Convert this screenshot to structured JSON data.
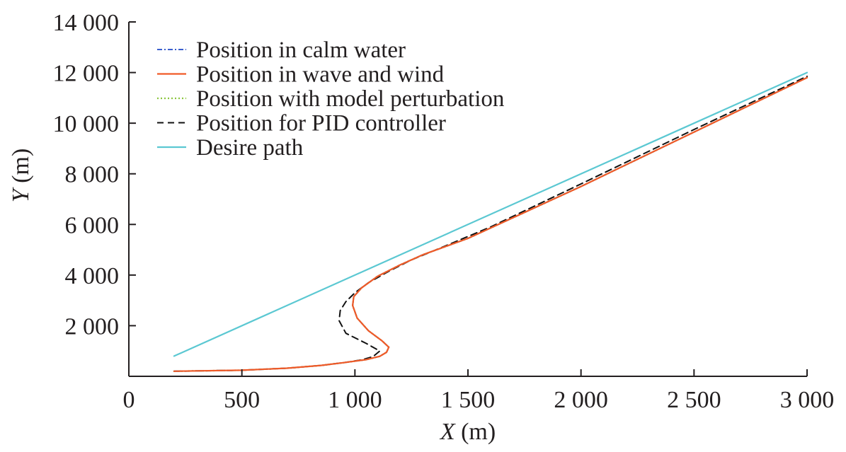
{
  "chart_data": {
    "type": "line",
    "xlabel": {
      "var": "X",
      "unit": " (m)"
    },
    "ylabel": {
      "var": "Y",
      "unit": " (m)"
    },
    "xlim": [
      0,
      3000
    ],
    "ylim": [
      0,
      14000
    ],
    "x_ticks": [
      0,
      500,
      1000,
      1500,
      2000,
      2500,
      3000
    ],
    "x_tick_labels": [
      "0",
      "500",
      "1 000",
      "1 500",
      "2 000",
      "2 500",
      "3 000"
    ],
    "y_ticks": [
      2000,
      4000,
      6000,
      8000,
      10000,
      12000,
      14000
    ],
    "y_tick_labels": [
      "2 000",
      "4 000",
      "6 000",
      "8 000",
      "10 000",
      "12 000",
      "14 000"
    ],
    "grid": false,
    "legend_position": "top-left",
    "series": [
      {
        "name": "Position in calm water",
        "color": "#3a5fcd",
        "dash": "dashdot",
        "x": [
          200,
          500,
          700,
          850,
          950,
          1050,
          1110,
          1140,
          1150,
          1120,
          1060,
          1010,
          990,
          995,
          1030,
          1100,
          1200,
          1300,
          1500,
          2000,
          2500,
          3000
        ],
        "y": [
          200,
          240,
          320,
          430,
          540,
          660,
          790,
          950,
          1150,
          1400,
          1800,
          2300,
          2800,
          3150,
          3500,
          3950,
          4400,
          4800,
          5450,
          7500,
          9650,
          11800
        ]
      },
      {
        "name": "Position in wave and wind",
        "color": "#f05a28",
        "dash": "solid",
        "x": [
          200,
          500,
          700,
          850,
          950,
          1050,
          1110,
          1140,
          1150,
          1120,
          1060,
          1010,
          990,
          995,
          1030,
          1100,
          1200,
          1300,
          1500,
          2000,
          2500,
          3000
        ],
        "y": [
          200,
          240,
          320,
          430,
          540,
          660,
          790,
          950,
          1150,
          1400,
          1800,
          2300,
          2800,
          3150,
          3500,
          3950,
          4400,
          4800,
          5450,
          7500,
          9650,
          11800
        ]
      },
      {
        "name": "Position with model perturbation",
        "color": "#8cc63f",
        "dash": "dotted",
        "x": [
          200,
          500,
          700,
          850,
          950,
          1050,
          1110,
          1140,
          1150,
          1120,
          1060,
          1010,
          990,
          995,
          1030,
          1100,
          1200,
          1300,
          1500,
          2000,
          2500,
          3000
        ],
        "y": [
          200,
          240,
          320,
          430,
          540,
          660,
          790,
          950,
          1150,
          1400,
          1800,
          2300,
          2800,
          3150,
          3500,
          3950,
          4400,
          4800,
          5450,
          7500,
          9650,
          11800
        ]
      },
      {
        "name": "Position for PID controller",
        "color": "#111111",
        "dash": "dashed",
        "x": [
          200,
          500,
          700,
          850,
          950,
          1030,
          1080,
          1110,
          1050,
          960,
          930,
          935,
          960,
          1000,
          1060,
          1150,
          1250,
          1400,
          1600,
          2000,
          2500,
          3000
        ],
        "y": [
          200,
          240,
          320,
          430,
          540,
          650,
          780,
          1000,
          1300,
          1700,
          2200,
          2600,
          2950,
          3300,
          3700,
          4150,
          4600,
          5150,
          5900,
          7600,
          9750,
          11850
        ]
      },
      {
        "name": "Desire path",
        "color": "#5bc8d2",
        "dash": "solid",
        "x": [
          200,
          3000
        ],
        "y": [
          800,
          12000
        ]
      }
    ]
  }
}
